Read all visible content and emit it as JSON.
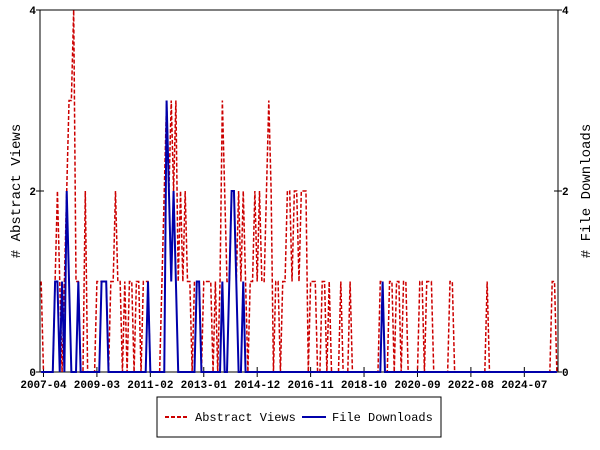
{
  "chart_data": {
    "type": "line",
    "x": [
      "2007-03",
      "2007-04",
      "2007-05",
      "2007-06",
      "2007-07",
      "2007-08",
      "2007-09",
      "2007-10",
      "2007-11",
      "2007-12",
      "2008-01",
      "2008-02",
      "2008-03",
      "2008-04",
      "2008-05",
      "2008-06",
      "2008-07",
      "2008-08",
      "2008-09",
      "2008-10",
      "2008-11",
      "2008-12",
      "2009-01",
      "2009-02",
      "2009-03",
      "2009-04",
      "2009-05",
      "2009-06",
      "2009-07",
      "2009-08",
      "2009-09",
      "2009-10",
      "2009-11",
      "2009-12",
      "2010-01",
      "2010-02",
      "2010-03",
      "2010-04",
      "2010-05",
      "2010-06",
      "2010-07",
      "2010-08",
      "2010-09",
      "2010-10",
      "2010-11",
      "2010-12",
      "2011-01",
      "2011-02",
      "2011-03",
      "2011-04",
      "2011-05",
      "2011-06",
      "2011-07",
      "2011-08",
      "2011-09",
      "2011-10",
      "2011-11",
      "2011-12",
      "2012-01",
      "2012-02",
      "2012-03",
      "2012-04",
      "2012-05",
      "2012-06",
      "2012-07",
      "2012-08",
      "2012-09",
      "2012-10",
      "2012-11",
      "2012-12",
      "2013-01",
      "2013-02",
      "2013-03",
      "2013-04",
      "2013-05",
      "2013-06",
      "2013-07",
      "2013-08",
      "2013-09",
      "2013-10",
      "2013-11",
      "2013-12",
      "2014-01",
      "2014-02",
      "2014-03",
      "2014-04",
      "2014-05",
      "2014-06",
      "2014-07",
      "2014-08",
      "2014-09",
      "2014-10",
      "2014-11",
      "2014-12",
      "2015-01",
      "2015-02",
      "2015-03",
      "2015-04",
      "2015-05",
      "2015-06",
      "2015-07",
      "2015-08",
      "2015-09",
      "2015-10",
      "2015-11",
      "2015-12",
      "2016-01",
      "2016-02",
      "2016-03",
      "2016-04",
      "2016-05",
      "2016-06",
      "2016-07",
      "2016-08",
      "2016-09",
      "2016-10",
      "2016-11",
      "2016-12",
      "2017-01",
      "2017-02",
      "2017-03",
      "2017-04",
      "2017-05",
      "2017-06",
      "2017-07",
      "2017-08",
      "2017-09",
      "2017-10",
      "2017-11",
      "2017-12",
      "2018-01",
      "2018-02",
      "2018-03",
      "2018-04",
      "2018-05",
      "2018-06",
      "2018-07",
      "2018-08",
      "2018-09",
      "2018-10",
      "2018-11",
      "2018-12",
      "2019-01",
      "2019-02",
      "2019-03",
      "2019-04",
      "2019-05",
      "2019-06",
      "2019-07",
      "2019-08",
      "2019-09",
      "2019-10",
      "2019-11",
      "2019-12",
      "2020-01",
      "2020-02",
      "2020-03",
      "2020-04",
      "2020-05",
      "2020-06",
      "2020-07",
      "2020-08",
      "2020-09",
      "2020-10",
      "2020-11",
      "2020-12",
      "2021-01",
      "2021-02",
      "2021-03",
      "2021-04",
      "2021-05",
      "2021-06",
      "2021-07",
      "2021-08",
      "2021-09",
      "2021-10",
      "2021-11",
      "2021-12",
      "2022-01",
      "2022-02",
      "2022-03",
      "2022-04",
      "2022-05",
      "2022-06",
      "2022-07",
      "2022-08",
      "2022-09",
      "2022-10",
      "2022-11",
      "2022-12",
      "2023-01",
      "2023-02",
      "2023-03",
      "2023-04",
      "2023-05",
      "2023-06",
      "2023-07",
      "2023-08",
      "2023-09",
      "2023-10",
      "2023-11",
      "2023-12",
      "2024-01",
      "2024-02",
      "2024-03",
      "2024-04",
      "2024-05",
      "2024-06",
      "2024-07",
      "2024-08",
      "2024-09",
      "2024-10",
      "2024-11",
      "2024-12",
      "2025-01",
      "2025-02",
      "2025-03",
      "2025-04",
      "2025-05",
      "2025-06",
      "2025-07",
      "2025-08",
      "2025-09"
    ],
    "xticks": [
      "2007-04",
      "2009-03",
      "2011-02",
      "2013-01",
      "2014-12",
      "2016-11",
      "2018-10",
      "2020-09",
      "2022-08",
      "2024-07"
    ],
    "y_label": "# Abstract Views",
    "y2_label": "# File Downloads",
    "ylim": [
      0,
      4
    ],
    "yticks": [
      0,
      2,
      4
    ],
    "y2lim": [
      0,
      4
    ],
    "y2ticks": [
      0,
      2,
      4
    ],
    "series": [
      {
        "name": "Abstract Views",
        "color": "#cc0000",
        "dash": true,
        "values": [
          1,
          0,
          0,
          0,
          0,
          0,
          1,
          2,
          1,
          0,
          1,
          2,
          3,
          3,
          4,
          1,
          1,
          0,
          0,
          2,
          0,
          0,
          0,
          0,
          1,
          1,
          1,
          1,
          1,
          0,
          1,
          1,
          2,
          1,
          1,
          0,
          1,
          0,
          1,
          1,
          0,
          1,
          1,
          0,
          1,
          1,
          1,
          0,
          0,
          0,
          0,
          0,
          1,
          2,
          3,
          2,
          3,
          2,
          3,
          1,
          2,
          1,
          2,
          1,
          1,
          0,
          1,
          1,
          1,
          0,
          1,
          1,
          1,
          1,
          0,
          1,
          0,
          1,
          3,
          2,
          1,
          1,
          2,
          2,
          1,
          2,
          1,
          2,
          1,
          0,
          1,
          1,
          2,
          1,
          2,
          1,
          1,
          2,
          3,
          2,
          0,
          1,
          1,
          0,
          1,
          1,
          2,
          2,
          1,
          2,
          2,
          1,
          2,
          2,
          2,
          0,
          1,
          1,
          1,
          0,
          0,
          1,
          1,
          0,
          1,
          0,
          0,
          0,
          0,
          1,
          0,
          0,
          0,
          1,
          0,
          0,
          0,
          0,
          0,
          0,
          0,
          0,
          0,
          0,
          0,
          0,
          1,
          1,
          0,
          0,
          1,
          1,
          0,
          1,
          1,
          0,
          1,
          1,
          0,
          0,
          0,
          0,
          0,
          1,
          1,
          0,
          1,
          1,
          1,
          0,
          0,
          0,
          0,
          0,
          0,
          0,
          1,
          1,
          0,
          0,
          0,
          0,
          0,
          0,
          0,
          0,
          0,
          0,
          0,
          0,
          0,
          0,
          1,
          0,
          0,
          0,
          0,
          0,
          0,
          0,
          0,
          0,
          0,
          0,
          0,
          0,
          0,
          0,
          0,
          0,
          0,
          0,
          0,
          0,
          0,
          0,
          0,
          0,
          0,
          0,
          1,
          1,
          0
        ]
      },
      {
        "name": "File Downloads",
        "color": "#0000aa",
        "dash": false,
        "axis": "y2",
        "values": [
          0,
          0,
          0,
          0,
          0,
          0,
          1,
          1,
          0,
          1,
          0,
          2,
          1,
          0,
          0,
          0,
          1,
          0,
          0,
          0,
          0,
          0,
          0,
          0,
          0,
          0,
          1,
          1,
          1,
          0,
          0,
          0,
          0,
          0,
          0,
          0,
          0,
          0,
          0,
          0,
          0,
          0,
          0,
          0,
          0,
          0,
          1,
          0,
          0,
          0,
          0,
          0,
          0,
          0,
          3,
          2,
          1,
          2,
          1,
          0,
          0,
          0,
          0,
          0,
          0,
          0,
          0,
          1,
          1,
          0,
          0,
          0,
          0,
          0,
          0,
          0,
          0,
          0,
          1,
          0,
          0,
          1,
          2,
          2,
          1,
          0,
          0,
          1,
          0,
          0,
          0,
          0,
          0,
          0,
          0,
          0,
          0,
          0,
          0,
          0,
          0,
          0,
          0,
          0,
          0,
          0,
          0,
          0,
          0,
          0,
          0,
          0,
          0,
          0,
          0,
          0,
          0,
          0,
          0,
          0,
          0,
          0,
          0,
          0,
          0,
          0,
          0,
          0,
          0,
          0,
          0,
          0,
          0,
          0,
          0,
          0,
          0,
          0,
          0,
          0,
          0,
          0,
          0,
          0,
          0,
          0,
          0,
          1,
          0,
          0,
          0,
          0,
          0,
          0,
          0,
          0,
          0,
          0,
          0,
          0,
          0,
          0,
          0,
          0,
          0,
          0,
          0,
          0,
          0,
          0,
          0,
          0,
          0,
          0,
          0,
          0,
          0,
          0,
          0,
          0,
          0,
          0,
          0,
          0,
          0,
          0,
          0,
          0,
          0,
          0,
          0,
          0,
          0,
          0,
          0,
          0,
          0,
          0,
          0,
          0,
          0,
          0,
          0,
          0,
          0,
          0,
          0,
          0,
          0,
          0,
          0,
          0,
          0,
          0,
          0,
          0,
          0,
          0,
          0,
          0,
          0,
          0,
          0
        ]
      }
    ]
  }
}
